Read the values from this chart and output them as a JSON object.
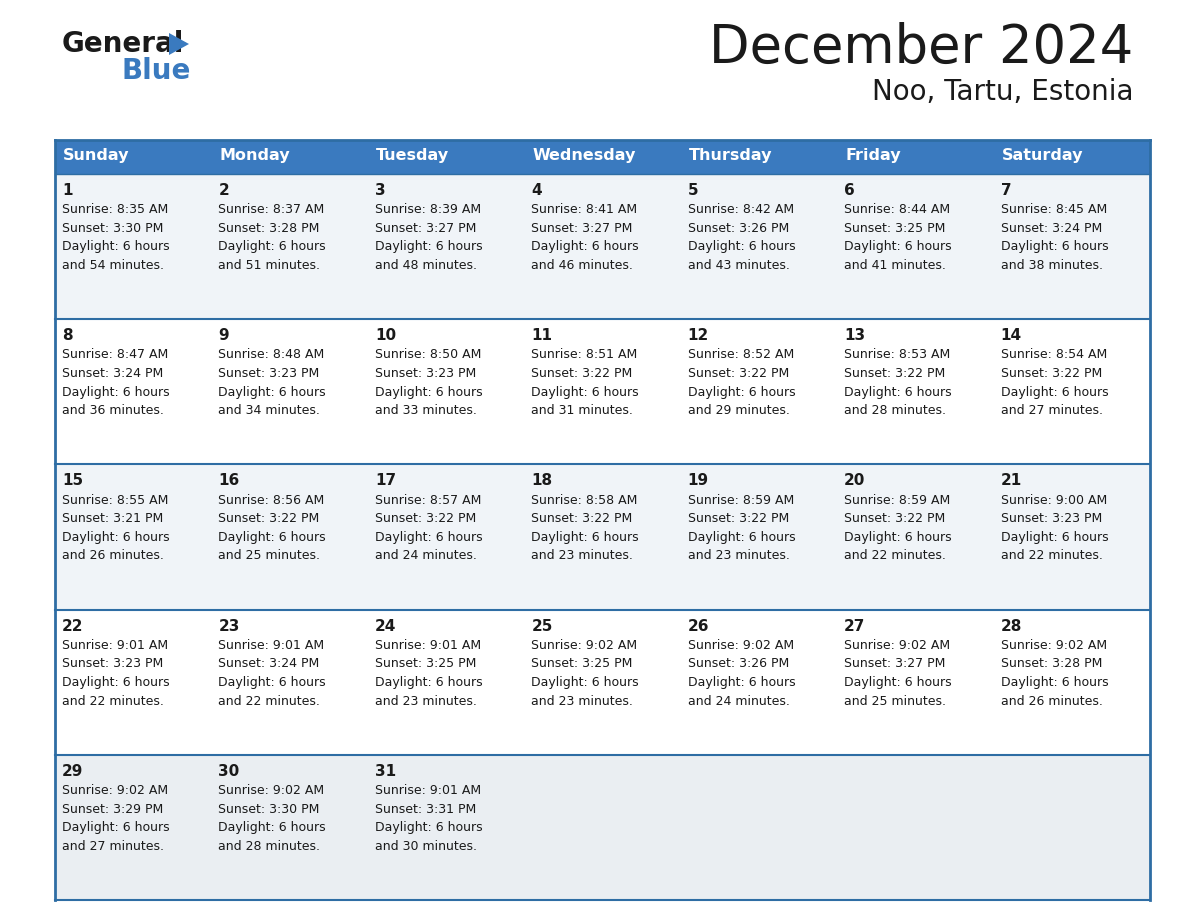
{
  "title": "December 2024",
  "subtitle": "Noo, Tartu, Estonia",
  "header_bg": "#3a7abf",
  "header_text": "#ffffff",
  "row_bg_light": "#f0f4f8",
  "row_bg_white": "#ffffff",
  "row_bg_last": "#eaeef2",
  "border_color": "#2e6da4",
  "text_color": "#1a1a1a",
  "days_of_week": [
    "Sunday",
    "Monday",
    "Tuesday",
    "Wednesday",
    "Thursday",
    "Friday",
    "Saturday"
  ],
  "calendar": [
    [
      {
        "day": "1",
        "sunrise": "8:35 AM",
        "sunset": "3:30 PM",
        "dl1": "6 hours",
        "dl2": "and 54 minutes."
      },
      {
        "day": "2",
        "sunrise": "8:37 AM",
        "sunset": "3:28 PM",
        "dl1": "6 hours",
        "dl2": "and 51 minutes."
      },
      {
        "day": "3",
        "sunrise": "8:39 AM",
        "sunset": "3:27 PM",
        "dl1": "6 hours",
        "dl2": "and 48 minutes."
      },
      {
        "day": "4",
        "sunrise": "8:41 AM",
        "sunset": "3:27 PM",
        "dl1": "6 hours",
        "dl2": "and 46 minutes."
      },
      {
        "day": "5",
        "sunrise": "8:42 AM",
        "sunset": "3:26 PM",
        "dl1": "6 hours",
        "dl2": "and 43 minutes."
      },
      {
        "day": "6",
        "sunrise": "8:44 AM",
        "sunset": "3:25 PM",
        "dl1": "6 hours",
        "dl2": "and 41 minutes."
      },
      {
        "day": "7",
        "sunrise": "8:45 AM",
        "sunset": "3:24 PM",
        "dl1": "6 hours",
        "dl2": "and 38 minutes."
      }
    ],
    [
      {
        "day": "8",
        "sunrise": "8:47 AM",
        "sunset": "3:24 PM",
        "dl1": "6 hours",
        "dl2": "and 36 minutes."
      },
      {
        "day": "9",
        "sunrise": "8:48 AM",
        "sunset": "3:23 PM",
        "dl1": "6 hours",
        "dl2": "and 34 minutes."
      },
      {
        "day": "10",
        "sunrise": "8:50 AM",
        "sunset": "3:23 PM",
        "dl1": "6 hours",
        "dl2": "and 33 minutes."
      },
      {
        "day": "11",
        "sunrise": "8:51 AM",
        "sunset": "3:22 PM",
        "dl1": "6 hours",
        "dl2": "and 31 minutes."
      },
      {
        "day": "12",
        "sunrise": "8:52 AM",
        "sunset": "3:22 PM",
        "dl1": "6 hours",
        "dl2": "and 29 minutes."
      },
      {
        "day": "13",
        "sunrise": "8:53 AM",
        "sunset": "3:22 PM",
        "dl1": "6 hours",
        "dl2": "and 28 minutes."
      },
      {
        "day": "14",
        "sunrise": "8:54 AM",
        "sunset": "3:22 PM",
        "dl1": "6 hours",
        "dl2": "and 27 minutes."
      }
    ],
    [
      {
        "day": "15",
        "sunrise": "8:55 AM",
        "sunset": "3:21 PM",
        "dl1": "6 hours",
        "dl2": "and 26 minutes."
      },
      {
        "day": "16",
        "sunrise": "8:56 AM",
        "sunset": "3:22 PM",
        "dl1": "6 hours",
        "dl2": "and 25 minutes."
      },
      {
        "day": "17",
        "sunrise": "8:57 AM",
        "sunset": "3:22 PM",
        "dl1": "6 hours",
        "dl2": "and 24 minutes."
      },
      {
        "day": "18",
        "sunrise": "8:58 AM",
        "sunset": "3:22 PM",
        "dl1": "6 hours",
        "dl2": "and 23 minutes."
      },
      {
        "day": "19",
        "sunrise": "8:59 AM",
        "sunset": "3:22 PM",
        "dl1": "6 hours",
        "dl2": "and 23 minutes."
      },
      {
        "day": "20",
        "sunrise": "8:59 AM",
        "sunset": "3:22 PM",
        "dl1": "6 hours",
        "dl2": "and 22 minutes."
      },
      {
        "day": "21",
        "sunrise": "9:00 AM",
        "sunset": "3:23 PM",
        "dl1": "6 hours",
        "dl2": "and 22 minutes."
      }
    ],
    [
      {
        "day": "22",
        "sunrise": "9:01 AM",
        "sunset": "3:23 PM",
        "dl1": "6 hours",
        "dl2": "and 22 minutes."
      },
      {
        "day": "23",
        "sunrise": "9:01 AM",
        "sunset": "3:24 PM",
        "dl1": "6 hours",
        "dl2": "and 22 minutes."
      },
      {
        "day": "24",
        "sunrise": "9:01 AM",
        "sunset": "3:25 PM",
        "dl1": "6 hours",
        "dl2": "and 23 minutes."
      },
      {
        "day": "25",
        "sunrise": "9:02 AM",
        "sunset": "3:25 PM",
        "dl1": "6 hours",
        "dl2": "and 23 minutes."
      },
      {
        "day": "26",
        "sunrise": "9:02 AM",
        "sunset": "3:26 PM",
        "dl1": "6 hours",
        "dl2": "and 24 minutes."
      },
      {
        "day": "27",
        "sunrise": "9:02 AM",
        "sunset": "3:27 PM",
        "dl1": "6 hours",
        "dl2": "and 25 minutes."
      },
      {
        "day": "28",
        "sunrise": "9:02 AM",
        "sunset": "3:28 PM",
        "dl1": "6 hours",
        "dl2": "and 26 minutes."
      }
    ],
    [
      {
        "day": "29",
        "sunrise": "9:02 AM",
        "sunset": "3:29 PM",
        "dl1": "6 hours",
        "dl2": "and 27 minutes."
      },
      {
        "day": "30",
        "sunrise": "9:02 AM",
        "sunset": "3:30 PM",
        "dl1": "6 hours",
        "dl2": "and 28 minutes."
      },
      {
        "day": "31",
        "sunrise": "9:01 AM",
        "sunset": "3:31 PM",
        "dl1": "6 hours",
        "dl2": "and 30 minutes."
      },
      null,
      null,
      null,
      null
    ]
  ]
}
